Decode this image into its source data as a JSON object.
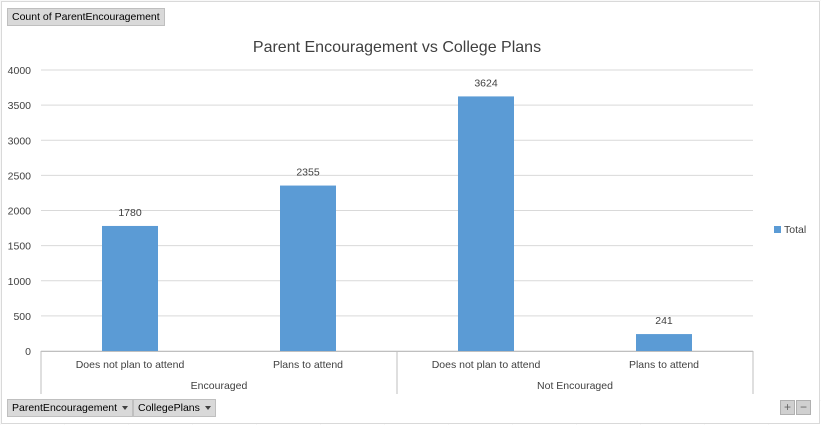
{
  "pivot": {
    "value_field": "Count of ParentEncouragement",
    "filters": [
      "ParentEncouragement",
      "CollegePlans"
    ],
    "zoom_in": "+",
    "zoom_out": "−"
  },
  "chart_data": {
    "type": "bar",
    "title": "Parent Encouragement vs College Plans",
    "xlabel": "",
    "ylabel": "",
    "ylim": [
      0,
      4000
    ],
    "yticks": [
      0,
      500,
      1000,
      1500,
      2000,
      2500,
      3000,
      3500,
      4000
    ],
    "grid": true,
    "legend_position": "right",
    "bar_color": "#5B9BD5",
    "groups": [
      {
        "label": "Encouraged",
        "categories": [
          "Does not plan to attend",
          "Plans to attend"
        ]
      },
      {
        "label": "Not Encouraged",
        "categories": [
          "Does not plan to attend",
          "Plans to attend"
        ]
      }
    ],
    "series": [
      {
        "name": "Total",
        "values": [
          1780,
          2355,
          3624,
          241
        ]
      }
    ],
    "data_labels": [
      "1780",
      "2355",
      "3624",
      "241"
    ]
  }
}
